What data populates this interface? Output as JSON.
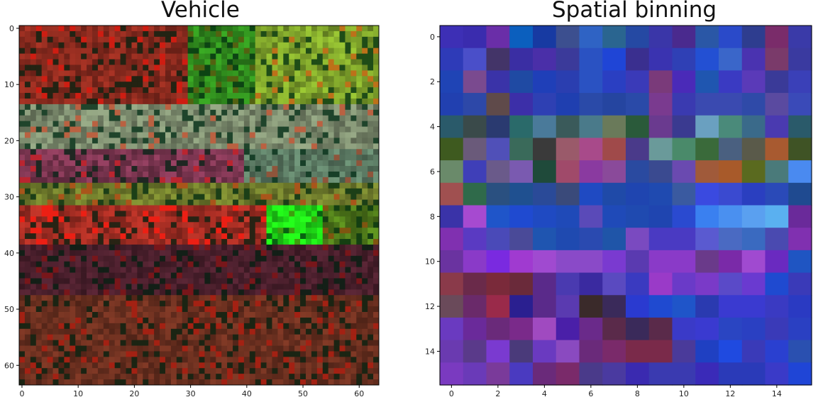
{
  "chart_data": [
    {
      "type": "heatmap",
      "title": "Vehicle",
      "xlabel": "",
      "ylabel": "",
      "grid": false,
      "x_range": [
        -0.5,
        63.5
      ],
      "y_range": [
        -0.5,
        63.5
      ],
      "x_ticks": [
        0,
        10,
        20,
        30,
        40,
        50,
        60
      ],
      "y_ticks": [
        0,
        10,
        20,
        30,
        40,
        50,
        60
      ],
      "y_axis_inverted": true,
      "size": [
        64,
        64
      ],
      "cell_encoding": "rgb",
      "region_colors": [
        {
          "rows": [
            0,
            14
          ],
          "cols": [
            0,
            30
          ],
          "color": "#8a2a1e"
        },
        {
          "rows": [
            0,
            14
          ],
          "cols": [
            30,
            42
          ],
          "color": "#2f8a1d"
        },
        {
          "rows": [
            0,
            14
          ],
          "cols": [
            42,
            64
          ],
          "color": "#7da12a"
        },
        {
          "rows": [
            14,
            22
          ],
          "cols": [
            0,
            64
          ],
          "color": "#7b8a6d"
        },
        {
          "rows": [
            22,
            28
          ],
          "cols": [
            0,
            40
          ],
          "color": "#7b3550"
        },
        {
          "rows": [
            22,
            28
          ],
          "cols": [
            40,
            64
          ],
          "color": "#5b7a63"
        },
        {
          "rows": [
            28,
            32
          ],
          "cols": [
            0,
            64
          ],
          "color": "#6e7a2b"
        },
        {
          "rows": [
            32,
            39
          ],
          "cols": [
            0,
            44
          ],
          "color": "#a02c22"
        },
        {
          "rows": [
            32,
            39
          ],
          "cols": [
            44,
            54
          ],
          "color": "#1fe017"
        },
        {
          "rows": [
            32,
            39
          ],
          "cols": [
            54,
            64
          ],
          "color": "#4f7a1a"
        },
        {
          "rows": [
            39,
            48
          ],
          "cols": [
            0,
            64
          ],
          "color": "#4a1f2c"
        },
        {
          "rows": [
            48,
            64
          ],
          "cols": [
            0,
            64
          ],
          "color": "#6a2f1f"
        }
      ]
    },
    {
      "type": "heatmap",
      "title": "Spatial binning",
      "xlabel": "",
      "ylabel": "",
      "grid": false,
      "x_range": [
        -0.5,
        15.5
      ],
      "y_range": [
        -0.5,
        15.5
      ],
      "x_ticks": [
        0,
        2,
        4,
        6,
        8,
        10,
        12,
        14
      ],
      "y_ticks": [
        0,
        2,
        4,
        6,
        8,
        10,
        12,
        14
      ],
      "y_axis_inverted": true,
      "size": [
        16,
        16
      ],
      "cell_encoding": "rgb",
      "cells": [
        [
          "#3d2fb5",
          "#3a2cae",
          "#6a2ea8",
          "#0b5fbe",
          "#173aa2",
          "#3c4f8f",
          "#2f63c4",
          "#2a6590",
          "#2549a3",
          "#3a36a8",
          "#4a2a8e",
          "#2a57a6",
          "#2a4ac9",
          "#2e3d8f",
          "#7a2c6a",
          "#3a3aa8"
        ],
        [
          "#2e3bb8",
          "#4a4fc9",
          "#433468",
          "#3a2ea3",
          "#4a2fa8",
          "#3b3a9a",
          "#2a52c2",
          "#1f45d6",
          "#3a2f8f",
          "#3a33b0",
          "#2f40b5",
          "#2350d3",
          "#3a66c9",
          "#4a33b0",
          "#7a3a6a",
          "#3a3aa0"
        ],
        [
          "#1f44b5",
          "#7a4a8f",
          "#3a33a8",
          "#1f4aa3",
          "#1f3fb8",
          "#2a3eb0",
          "#2a52c2",
          "#2a3fc2",
          "#3a3ab8",
          "#7a3a7a",
          "#4a2ab8",
          "#1f56b0",
          "#3a3ac2",
          "#5a3ab8",
          "#3a3a98",
          "#3a40b8"
        ],
        [
          "#2140b0",
          "#2d48a8",
          "#5f4a4a",
          "#3c2fa8",
          "#2e40b3",
          "#1f3fb0",
          "#2a4aa8",
          "#2545a0",
          "#2a4aa8",
          "#7a3a8f",
          "#3a3ab0",
          "#3a4ab0",
          "#3a4ab0",
          "#2f4aa8",
          "#5a4aa0",
          "#3a4ab8"
        ],
        [
          "#2a5a6a",
          "#3a4a4a",
          "#2a3a70",
          "#2a6a6a",
          "#4a7a9a",
          "#3a5a5a",
          "#4a7a8a",
          "#6a7a5a",
          "#2a5a3a",
          "#6a3a8f",
          "#3a3a90",
          "#6aa0c0",
          "#4a8a7a",
          "#3a6a8a",
          "#4a3ab0",
          "#2a5a6a"
        ],
        [
          "#3e5a1f",
          "#6a5a7a",
          "#5050b8",
          "#3a6a5a",
          "#3a3a3a",
          "#9a5a6a",
          "#a84a8a",
          "#a04a4a",
          "#4a3a8a",
          "#6a9a9a",
          "#4a8a6a",
          "#3a6a3a",
          "#4a6080",
          "#5a5a4a",
          "#a85a30",
          "#3f5325"
        ],
        [
          "#6a8a6a",
          "#3f3fb8",
          "#6a5a8a",
          "#7a5ab0",
          "#1f4a3a",
          "#a04a6a",
          "#8a3aa0",
          "#8a4a9a",
          "#2a4aa0",
          "#3a4a90",
          "#6a4ab0",
          "#a05a3a",
          "#a85a2a",
          "#5a6a1f",
          "#4a7a7a",
          "#4a8af0"
        ],
        [
          "#a05050",
          "#2f6a4a",
          "#2a5080",
          "#1f5090",
          "#2a4a98",
          "#3a4a7a",
          "#1f4ac2",
          "#1f4aa8",
          "#1f45b0",
          "#1f4ab0",
          "#3a5aa0",
          "#3a4ae0",
          "#3a4ad0",
          "#2a3fc0",
          "#2a4ab8",
          "#1f4a90"
        ],
        [
          "#3a33a8",
          "#a64ad0",
          "#1f55c9",
          "#1f4ad0",
          "#1f4ac2",
          "#1f4ab8",
          "#5a4ab8",
          "#1f4ab8",
          "#1f4ab0",
          "#1f45b0",
          "#2a4ad0",
          "#3a80f0",
          "#4a90f0",
          "#5aa0f0",
          "#5ab0f0",
          "#6a2a9a"
        ],
        [
          "#8030b0",
          "#5a3ac2",
          "#4a4ab8",
          "#4a4a98",
          "#1f55b0",
          "#1f4ab0",
          "#2a4ab0",
          "#1f55a8",
          "#7a4ac0",
          "#4a3ac2",
          "#4a3ac2",
          "#5a5ad0",
          "#4a6ac2",
          "#3a6ac0",
          "#4a4ab0",
          "#8030b0"
        ],
        [
          "#6a33a0",
          "#8a3ac8",
          "#7a2ae0",
          "#a03ad0",
          "#a04ad0",
          "#8a4ac8",
          "#8a4ac8",
          "#7a3ad0",
          "#5a3ab0",
          "#8a3ac8",
          "#8a3ac8",
          "#6a3a8a",
          "#7a2aa8",
          "#a04ad0",
          "#6a2ac0",
          "#1f55c2"
        ],
        [
          "#8a3a4a",
          "#6a2a4a",
          "#7a2a3a",
          "#6a2a3a",
          "#5a2a8a",
          "#4a3ab0",
          "#3a2aa0",
          "#5a4ac0",
          "#3a3ac0",
          "#9a3ac8",
          "#6a3ac8",
          "#7a3ac8",
          "#5a4ac8",
          "#6a3ad0",
          "#1f4ad0",
          "#3a3ab8"
        ],
        [
          "#6a4a5a",
          "#6a2a6a",
          "#9a2a4a",
          "#2a1f90",
          "#5a2a8a",
          "#5a3ab0",
          "#3a2a2a",
          "#3a2a5a",
          "#2a3ad0",
          "#1f4ad0",
          "#1f55c9",
          "#2a3ab0",
          "#3a3ad0",
          "#3a3ad0",
          "#3a3ac2",
          "#2a3ac2"
        ],
        [
          "#6a3ac0",
          "#6a2a9a",
          "#6a2a7a",
          "#7a2a8a",
          "#a04ac0",
          "#4a1fa8",
          "#6a2a8a",
          "#5a2a4a",
          "#3a2a5a",
          "#5a2a4a",
          "#3a3ac8",
          "#3a3ad0",
          "#2a45c2",
          "#2a40c2",
          "#3a3ab8",
          "#2a40c2"
        ],
        [
          "#6a3ab0",
          "#5a3a8a",
          "#7a3ad0",
          "#4a3a7a",
          "#6a3ac0",
          "#8a4ac0",
          "#6a2a7a",
          "#7a2a6a",
          "#7a2a4a",
          "#7a2a4a",
          "#4a3a9a",
          "#1f40c2",
          "#1f4ae0",
          "#3a3ab8",
          "#2a40d0",
          "#2a50b0"
        ],
        [
          "#7a3ac0",
          "#6a3ab8",
          "#7a3a9a",
          "#4a3ac0",
          "#6a2a7a",
          "#7a2a6a",
          "#4a3a8a",
          "#4a3aa0",
          "#3a2ab0",
          "#3a3ab0",
          "#3a3ab0",
          "#3a2ab8",
          "#2a3ab8",
          "#2a3ab8",
          "#3a3ac8",
          "#1f45d6"
        ]
      ]
    }
  ]
}
